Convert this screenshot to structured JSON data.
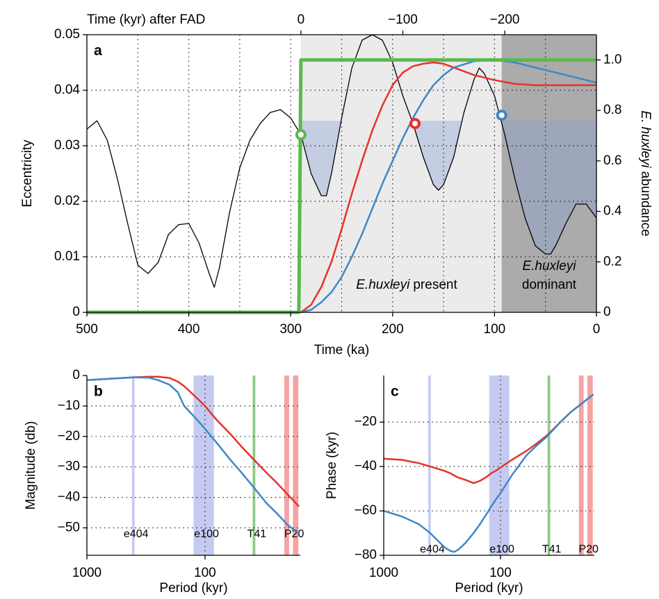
{
  "chart_data": [
    {
      "type": "line",
      "panel_label": "a",
      "xlabel": "Time (ka)",
      "ylabel": "Eccentricity",
      "y2label": {
        "italic": "E. huxleyi",
        "text": "abundance"
      },
      "x2label": "Time (kyr) after FAD",
      "fad": 290,
      "x2ticks": [
        0,
        {
          "value": -100,
          "label": "−100"
        },
        {
          "value": -200,
          "label": "−200"
        }
      ],
      "xlim": [
        500,
        0
      ],
      "xticks": [
        500,
        400,
        300,
        200,
        100,
        0
      ],
      "x_minor_ticks": [
        450,
        350,
        250,
        150,
        50
      ],
      "ylim": [
        0,
        0.05
      ],
      "yticks": [
        0,
        0.01,
        0.02,
        0.03,
        0.04,
        0.05
      ],
      "y2lim": [
        0,
        1.1
      ],
      "y2ticks": [
        0,
        0.2,
        0.4,
        0.6,
        0.8,
        {
          "value": 1,
          "label": "1.0"
        }
      ],
      "grid": true,
      "frame": true,
      "regions": [
        {
          "from": 290,
          "to": 0,
          "color": "#ebebeb"
        },
        {
          "from": 93,
          "to": 0,
          "color": "#ababab"
        }
      ],
      "shade_level": 0.0345,
      "shade_color": "#8d9fd6",
      "annotations": [
        {
          "italic": "E.huxleyi",
          "text": "present"
        },
        {
          "italic": "E.huxleyi",
          "text": "dominant"
        }
      ],
      "series": [
        {
          "color": "#000000",
          "x": [
            500,
            490,
            480,
            470,
            460,
            450,
            440,
            430,
            420,
            410,
            400,
            390,
            380,
            375,
            370,
            360,
            350,
            340,
            330,
            320,
            310,
            300,
            290,
            280,
            270,
            265,
            260,
            250,
            240,
            230,
            220,
            210,
            200,
            190,
            180,
            170,
            160,
            155,
            150,
            140,
            130,
            120,
            115,
            110,
            100,
            90,
            80,
            70,
            60,
            50,
            45,
            40,
            30,
            20,
            10,
            0
          ],
          "values": [
            0.033,
            0.0345,
            0.031,
            0.024,
            0.016,
            0.0085,
            0.007,
            0.009,
            0.014,
            0.0158,
            0.016,
            0.0125,
            0.007,
            0.0045,
            0.008,
            0.018,
            0.026,
            0.031,
            0.034,
            0.036,
            0.0365,
            0.035,
            0.032,
            0.025,
            0.021,
            0.021,
            0.025,
            0.035,
            0.044,
            0.049,
            0.05,
            0.049,
            0.045,
            0.039,
            0.034,
            0.028,
            0.023,
            0.022,
            0.023,
            0.028,
            0.036,
            0.042,
            0.044,
            0.043,
            0.039,
            0.032,
            0.024,
            0.017,
            0.012,
            0.0105,
            0.0105,
            0.012,
            0.016,
            0.0195,
            0.0195,
            0.017
          ]
        },
        {
          "color": "#e8312a",
          "axis": "y2",
          "x": [
            290,
            280,
            270,
            260,
            250,
            240,
            230,
            220,
            210,
            200,
            190,
            180,
            170,
            160,
            150,
            140,
            120,
            100,
            80,
            60,
            40,
            20,
            0
          ],
          "values": [
            0,
            0.03,
            0.1,
            0.2,
            0.33,
            0.47,
            0.6,
            0.72,
            0.82,
            0.9,
            0.95,
            0.975,
            0.985,
            0.99,
            0.985,
            0.97,
            0.94,
            0.92,
            0.905,
            0.9,
            0.9,
            0.9,
            0.9
          ]
        },
        {
          "color": "#3d87c8",
          "axis": "y2",
          "x": [
            290,
            280,
            270,
            260,
            250,
            240,
            230,
            220,
            210,
            200,
            190,
            180,
            170,
            160,
            150,
            140,
            120,
            100,
            80,
            60,
            40,
            20,
            0
          ],
          "values": [
            0,
            0.01,
            0.04,
            0.08,
            0.14,
            0.22,
            0.31,
            0.41,
            0.51,
            0.6,
            0.69,
            0.77,
            0.84,
            0.9,
            0.94,
            0.97,
            0.995,
            1.0,
            0.99,
            0.97,
            0.95,
            0.93,
            0.91
          ]
        },
        {
          "color": "#5cb84e",
          "axis": "y2",
          "x": [
            500,
            292,
            290,
            0
          ],
          "values": [
            0,
            0,
            1,
            1
          ]
        }
      ],
      "markers": [
        {
          "x": 290,
          "value": 0.032,
          "color": "#5cb84e"
        },
        {
          "x": 178,
          "value": 0.034,
          "color": "#e8312a"
        },
        {
          "x": 93,
          "value": 0.0355,
          "color": "#3d87c8"
        }
      ]
    },
    {
      "type": "line",
      "panel_label": "b",
      "xlabel": "Period (kyr)",
      "ylabel": "Magnitude (db)",
      "xlog": true,
      "xlim": [
        1000,
        15.6
      ],
      "xticks": [
        1000,
        100
      ],
      "ylim": [
        -59,
        0
      ],
      "yticks": [
        0,
        {
          "value": -10,
          "label": "−10"
        },
        {
          "value": -20,
          "label": "−20"
        },
        {
          "value": -30,
          "label": "−30"
        },
        {
          "value": -40,
          "label": "−40"
        },
        {
          "value": -50,
          "label": "−50"
        }
      ],
      "grid": true,
      "bands": [
        {
          "label": "e404",
          "color": "#c5cbf0",
          "ranges": [
            [
              415,
              395
            ]
          ]
        },
        {
          "label": "e100",
          "color": "#c5cbf0",
          "ranges": [
            [
              125,
              84
            ]
          ]
        },
        {
          "label": "T41",
          "color": "#8fca8a",
          "ranges": [
            [
              39.5,
              37.5
            ]
          ]
        },
        {
          "label": "P20",
          "color": "#f5a3a3",
          "ranges": [
            [
              21.3,
              19.4
            ],
            [
              18,
              16.2
            ]
          ]
        }
      ],
      "series": [
        {
          "color": "#e8312a",
          "x": [
            1000,
            600,
            400,
            300,
            250,
            200,
            170,
            150,
            120,
            100,
            80,
            60,
            50,
            40,
            30,
            25,
            20,
            16
          ],
          "values": [
            -1.5,
            -1.0,
            -0.6,
            -0.4,
            -0.4,
            -0.8,
            -2.0,
            -3.5,
            -7,
            -10,
            -14.5,
            -19.5,
            -23,
            -27,
            -32,
            -35,
            -39,
            -43
          ]
        },
        {
          "color": "#3d87c8",
          "x": [
            1000,
            600,
            400,
            300,
            250,
            200,
            170,
            150,
            120,
            100,
            80,
            60,
            50,
            40,
            30,
            25,
            20,
            16
          ],
          "values": [
            -1.5,
            -1.0,
            -0.6,
            -0.7,
            -1.5,
            -3,
            -5.5,
            -10,
            -14,
            -17.5,
            -22,
            -28,
            -31.5,
            -36,
            -42,
            -45,
            -49,
            -52
          ]
        }
      ]
    },
    {
      "type": "line",
      "panel_label": "c",
      "xlabel": "Period (kyr)",
      "ylabel": "Phase (kyr)",
      "xlog": true,
      "xlim": [
        1000,
        15.7
      ],
      "xticks": [
        1000,
        100
      ],
      "ylim": [
        -80,
        1
      ],
      "yticks": [
        {
          "value": -20,
          "label": "−20"
        },
        {
          "value": -40,
          "label": "−40"
        },
        {
          "value": -60,
          "label": "−60"
        },
        {
          "value": -80,
          "label": "−80"
        }
      ],
      "grid": true,
      "bands": [
        {
          "label": "e404",
          "color": "#c5cbf0",
          "ranges": [
            [
              415,
              395
            ]
          ]
        },
        {
          "label": "e100",
          "color": "#c5cbf0",
          "ranges": [
            [
              125,
              84
            ]
          ]
        },
        {
          "label": "T41",
          "color": "#8fca8a",
          "ranges": [
            [
              39.5,
              37.5
            ]
          ]
        },
        {
          "label": "P20",
          "color": "#f5a3a3",
          "ranges": [
            [
              21.3,
              19.4
            ],
            [
              18,
              16.2
            ]
          ]
        }
      ],
      "series": [
        {
          "color": "#e8312a",
          "x": [
            1000,
            700,
            500,
            400,
            300,
            270,
            250,
            230,
            200,
            170,
            150,
            130,
            120,
            110,
            100,
            80,
            60,
            50,
            40,
            30,
            25,
            20,
            16
          ],
          "values": [
            -36.5,
            -37,
            -38.5,
            -40,
            -42,
            -43,
            -44,
            -45,
            -46,
            -47.5,
            -46.5,
            -44.5,
            -43,
            -42,
            -40.5,
            -37,
            -33,
            -30,
            -26,
            -19.5,
            -15.5,
            -11.5,
            -7.5
          ]
        },
        {
          "color": "#3d87c8",
          "x": [
            1000,
            700,
            500,
            400,
            300,
            270,
            250,
            230,
            200,
            170,
            150,
            130,
            120,
            110,
            100,
            80,
            60,
            50,
            40,
            30,
            25,
            20,
            16
          ],
          "values": [
            -60,
            -62.5,
            -66,
            -70,
            -76.5,
            -78,
            -78.5,
            -77.5,
            -74.5,
            -70,
            -66,
            -61,
            -58,
            -55,
            -52,
            -44,
            -35,
            -31,
            -26.5,
            -19.5,
            -15.5,
            -11.5,
            -7.5
          ]
        }
      ]
    }
  ]
}
